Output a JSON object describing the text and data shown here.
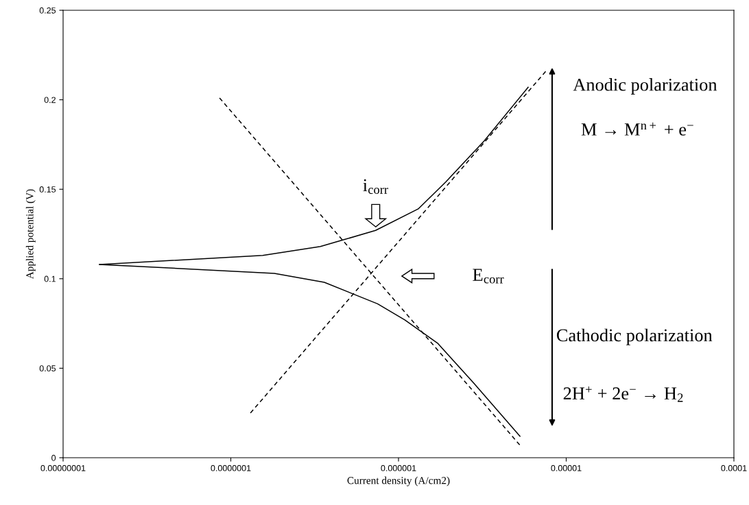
{
  "chart_data": {
    "type": "line",
    "xlabel": "Current density (A/cm2)",
    "ylabel": "Applied potential (V)",
    "log": "x",
    "xlim": [
      1e-08,
      0.0001
    ],
    "ylim": [
      0,
      0.25
    ],
    "xticks": [
      {
        "value": 1e-08,
        "label": "0.00000001"
      },
      {
        "value": 1e-07,
        "label": "0.0000001"
      },
      {
        "value": 1e-06,
        "label": "0.000001"
      },
      {
        "value": 1e-05,
        "label": "0.00001"
      },
      {
        "value": 0.0001,
        "label": "0.0001"
      }
    ],
    "yticks": [
      0,
      0.05,
      0.1,
      0.15,
      0.2,
      0.25
    ],
    "grid": false,
    "marker": "none",
    "series": [
      {
        "color": "#000000",
        "line_style": "solid",
        "x": [
          1.65e-08,
          1.55e-07,
          3.42e-07,
          4.8e-07,
          7.3e-07,
          1.31e-06,
          1.91e-06,
          3.24e-06,
          5.93e-06
        ],
        "values": [
          0.108,
          0.113,
          0.118,
          0.122,
          0.127,
          0.139,
          0.154,
          0.177,
          0.207
        ]
      },
      {
        "color": "#000000",
        "line_style": "solid",
        "x": [
          1.65e-08,
          1.82e-07,
          3.61e-07,
          7.5e-07,
          1.09e-06,
          1.71e-06,
          2.79e-06,
          5.3e-06
        ],
        "values": [
          0.108,
          0.103,
          0.098,
          0.086,
          0.077,
          0.064,
          0.042,
          0.012
        ]
      },
      {
        "color": "#000000",
        "line_style": "dashed",
        "x": [
          1.31e-07,
          7.73e-06
        ],
        "values": [
          0.025,
          0.217
        ]
      },
      {
        "color": "#000000",
        "line_style": "dashed",
        "x": [
          8.57e-08,
          5.3e-06
        ],
        "values": [
          0.201,
          0.007
        ]
      }
    ],
    "annotations": [
      "i$_{corr}$",
      "E$_{corr}$",
      "Anodic polarization",
      "M → M$^{n+}$ + e$^{−}$",
      "Cathodic polarization",
      "2H$^{+}$ + 2e$^{−}$ → H$_{2}$"
    ]
  }
}
